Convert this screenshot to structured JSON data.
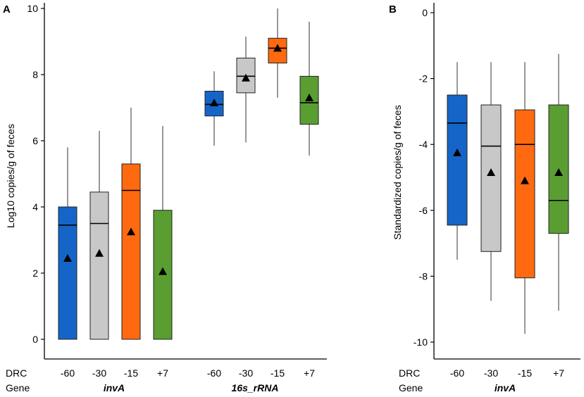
{
  "chart_data": [
    {
      "type": "box",
      "panel": "A",
      "ylabel": "Log10 copies/g of feces",
      "ylim": [
        0,
        10
      ],
      "yticks": [
        0,
        2,
        4,
        6,
        8,
        10
      ],
      "row_labels": {
        "drc": "DRC",
        "gene": "Gene"
      },
      "groups": [
        {
          "gene": "invA",
          "boxes": [
            {
              "drc": "-60",
              "color": "#1565C8",
              "min": 0,
              "q1": 0,
              "median": 3.45,
              "q3": 4.0,
              "max": 5.8,
              "mean": 2.45
            },
            {
              "drc": "-30",
              "color": "#C8C8C8",
              "min": 0,
              "q1": 0,
              "median": 3.5,
              "q3": 4.45,
              "max": 6.3,
              "mean": 2.6
            },
            {
              "drc": "-15",
              "color": "#FF6A10",
              "min": 0,
              "q1": 0,
              "median": 4.5,
              "q3": 5.3,
              "max": 7.0,
              "mean": 3.25
            },
            {
              "drc": "+7",
              "color": "#5A9E32",
              "min": 0,
              "q1": 0,
              "median": 0,
              "q3": 3.9,
              "max": 6.45,
              "mean": 2.05
            }
          ]
        },
        {
          "gene": "16s_rRNA",
          "boxes": [
            {
              "drc": "-60",
              "color": "#1565C8",
              "min": 5.85,
              "q1": 6.75,
              "median": 7.1,
              "q3": 7.5,
              "max": 8.1,
              "mean": 7.15
            },
            {
              "drc": "-30",
              "color": "#C8C8C8",
              "min": 5.95,
              "q1": 7.45,
              "median": 7.95,
              "q3": 8.5,
              "max": 9.15,
              "mean": 7.9
            },
            {
              "drc": "-15",
              "color": "#FF6A10",
              "min": 7.3,
              "q1": 8.35,
              "median": 8.8,
              "q3": 9.1,
              "max": 10.0,
              "mean": 8.8
            },
            {
              "drc": "+7",
              "color": "#5A9E32",
              "min": 5.55,
              "q1": 6.5,
              "median": 7.15,
              "q3": 7.95,
              "max": 9.6,
              "mean": 7.3
            }
          ]
        }
      ]
    },
    {
      "type": "box",
      "panel": "B",
      "ylabel": "Standardized copies/g of feces",
      "ylim": [
        -10,
        0
      ],
      "yticks": [
        0,
        -2,
        -4,
        -6,
        -8,
        -10
      ],
      "row_labels": {
        "drc": "DRC",
        "gene": "Gene"
      },
      "groups": [
        {
          "gene": "invA",
          "boxes": [
            {
              "drc": "-60",
              "color": "#1565C8",
              "min": -7.5,
              "q1": -6.45,
              "median": -3.35,
              "q3": -2.5,
              "max": -1.5,
              "mean": -4.25
            },
            {
              "drc": "-30",
              "color": "#C8C8C8",
              "min": -8.75,
              "q1": -7.25,
              "median": -4.05,
              "q3": -2.8,
              "max": -1.5,
              "mean": -4.85
            },
            {
              "drc": "-15",
              "color": "#FF6A10",
              "min": -9.75,
              "q1": -8.05,
              "median": -4.0,
              "q3": -2.95,
              "max": -1.5,
              "mean": -5.1
            },
            {
              "drc": "+7",
              "color": "#5A9E32",
              "min": -9.05,
              "q1": -6.7,
              "median": -5.7,
              "q3": -2.8,
              "max": -1.25,
              "mean": -4.85
            }
          ]
        }
      ]
    }
  ]
}
